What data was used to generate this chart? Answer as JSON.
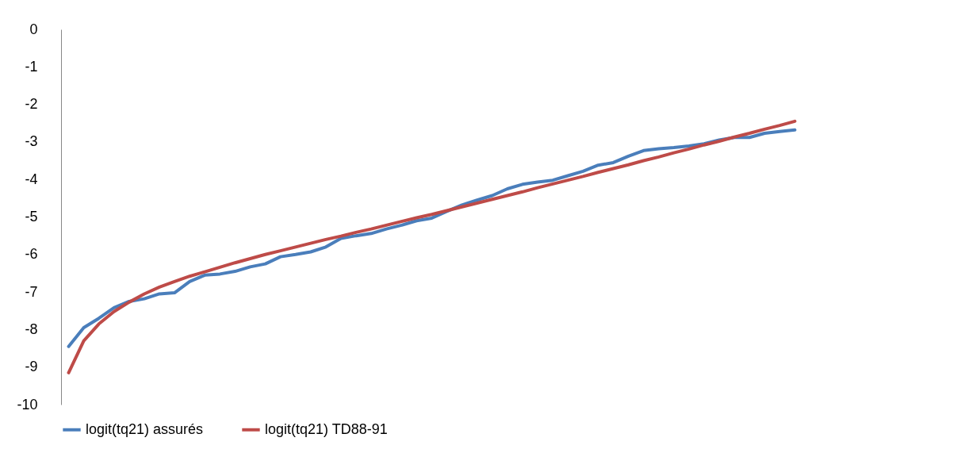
{
  "chart_data": {
    "type": "line",
    "categories": [
      null,
      null,
      null,
      null,
      null,
      null,
      null,
      null,
      null,
      null,
      null,
      null,
      null,
      null,
      null,
      null,
      null,
      null,
      null,
      null,
      null,
      null,
      null,
      null,
      null,
      null,
      null,
      null,
      null,
      null,
      null,
      null,
      null,
      null,
      null,
      null,
      null,
      null,
      null,
      null,
      null,
      null,
      null,
      null,
      null,
      null,
      null,
      null,
      null
    ],
    "series": [
      {
        "name": "logit(tq21) assurés",
        "color": "#4a7ebb",
        "values": [
          -8.45,
          -7.95,
          -7.7,
          -7.42,
          -7.25,
          -7.18,
          -7.05,
          -7.02,
          -6.72,
          -6.55,
          -6.52,
          -6.45,
          -6.33,
          -6.25,
          -6.06,
          -6.0,
          -5.93,
          -5.8,
          -5.57,
          -5.5,
          -5.44,
          -5.32,
          -5.22,
          -5.1,
          -5.03,
          -4.85,
          -4.68,
          -4.55,
          -4.43,
          -4.25,
          -4.13,
          -4.07,
          -4.02,
          -3.9,
          -3.78,
          -3.62,
          -3.55,
          -3.38,
          -3.23,
          -3.18,
          -3.15,
          -3.11,
          -3.05,
          -2.95,
          -2.88,
          -2.88,
          -2.77,
          -2.72,
          -2.68
        ]
      },
      {
        "name": "logit(tq21) TD88-91",
        "color": "#be4b48",
        "values": [
          -9.15,
          -8.3,
          -7.85,
          -7.52,
          -7.27,
          -7.05,
          -6.87,
          -6.72,
          -6.58,
          -6.46,
          -6.34,
          -6.22,
          -6.11,
          -6.0,
          -5.9,
          -5.8,
          -5.7,
          -5.6,
          -5.51,
          -5.41,
          -5.32,
          -5.22,
          -5.12,
          -5.02,
          -4.93,
          -4.83,
          -4.73,
          -4.63,
          -4.53,
          -4.43,
          -4.33,
          -4.22,
          -4.12,
          -4.02,
          -3.92,
          -3.81,
          -3.71,
          -3.61,
          -3.5,
          -3.4,
          -3.29,
          -3.19,
          -3.08,
          -2.98,
          -2.87,
          -2.77,
          -2.66,
          -2.56,
          -2.45
        ]
      }
    ],
    "ylim": [
      -10,
      0
    ],
    "yticks": [
      0,
      -1,
      -2,
      -3,
      -4,
      -5,
      -6,
      -7,
      -8,
      -9,
      -10
    ],
    "grid": false,
    "legend": "bottom",
    "tick_labels": "y",
    "marker": "none",
    "line_style": "solid"
  }
}
